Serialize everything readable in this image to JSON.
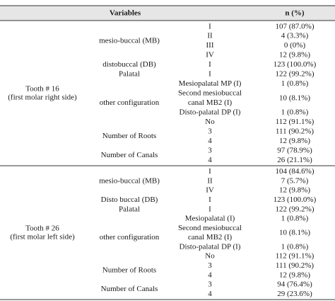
{
  "table": {
    "header": [
      "Variables",
      "n (%)"
    ],
    "sections": [
      {
        "tooth": [
          "Tooth # 16",
          "(first molar right side)"
        ],
        "groups": [
          {
            "label": "mesio-buccal (MB)",
            "rows": [
              [
                [
                  "I"
                ],
                "107 (87.0%)"
              ],
              [
                [
                  "II"
                ],
                "4 (3.3%)"
              ],
              [
                [
                  "III"
                ],
                "0 (0%)"
              ],
              [
                [
                  "IV"
                ],
                "12 (9.8%)"
              ]
            ]
          },
          {
            "label": "distobuccal (DB)",
            "rows": [
              [
                [
                  "I"
                ],
                "123 (100.0%)"
              ]
            ]
          },
          {
            "label": "Palatal",
            "rows": [
              [
                [
                  "I"
                ],
                "122 (99.2%)"
              ]
            ]
          },
          {
            "label": "other configuration",
            "rows": [
              [
                [
                  "Mesiopalatal MP (I)"
                ],
                "1 (0.8%)"
              ],
              [
                [
                  "Second mesiobuccal",
                  "canal MB2 (I)"
                ],
                "10 (8.1%)"
              ],
              [
                [
                  "Disto-palatal DP (I)"
                ],
                "1 (0.8%)"
              ],
              [
                [
                  "No"
                ],
                "112 (91.1%)"
              ]
            ]
          },
          {
            "label": "Number of Roots",
            "rows": [
              [
                [
                  "3"
                ],
                "111 (90.2%)"
              ],
              [
                [
                  "4"
                ],
                "12 (9.8%)"
              ]
            ]
          },
          {
            "label": "Number of Canals",
            "rows": [
              [
                [
                  "3"
                ],
                "97 (78.9%)"
              ],
              [
                [
                  "4"
                ],
                "26 (21.1%)"
              ]
            ]
          }
        ]
      },
      {
        "tooth": [
          "Tooth # 26",
          "(first molar left side)"
        ],
        "groups": [
          {
            "label": "mesio-buccal (MB)",
            "rows": [
              [
                [
                  "I"
                ],
                "104 (84.6%)"
              ],
              [
                [
                  "II"
                ],
                "7 (5.7%)"
              ],
              [
                [
                  "IV"
                ],
                "12 (9.8%)"
              ]
            ]
          },
          {
            "label": "Disto buccal (DB)",
            "rows": [
              [
                [
                  "I"
                ],
                "123 (100.0%)"
              ]
            ]
          },
          {
            "label": "Palatal",
            "rows": [
              [
                [
                  "I"
                ],
                "122 (99.2%)"
              ]
            ]
          },
          {
            "label": "other configuration",
            "rows": [
              [
                [
                  "Mesiopalatal (I)"
                ],
                "1 (0.8%)"
              ],
              [
                [
                  "Second mesiobuccal",
                  "canal MB2 (I)"
                ],
                "10 (8.1%)"
              ],
              [
                [
                  "Disto-palatal DP (I)"
                ],
                "1 (0.8%)"
              ],
              [
                [
                  "No"
                ],
                "112 (91.1%)"
              ]
            ]
          },
          {
            "label": "Number of Roots",
            "rows": [
              [
                [
                  "3"
                ],
                "111 (90.2%)"
              ],
              [
                [
                  "4"
                ],
                "12 (9.8%)"
              ]
            ]
          },
          {
            "label": "Number of Canals",
            "rows": [
              [
                [
                  "3"
                ],
                "94 (76.4%)"
              ],
              [
                [
                  "4"
                ],
                "29 (23.6%)"
              ]
            ]
          }
        ]
      }
    ]
  }
}
